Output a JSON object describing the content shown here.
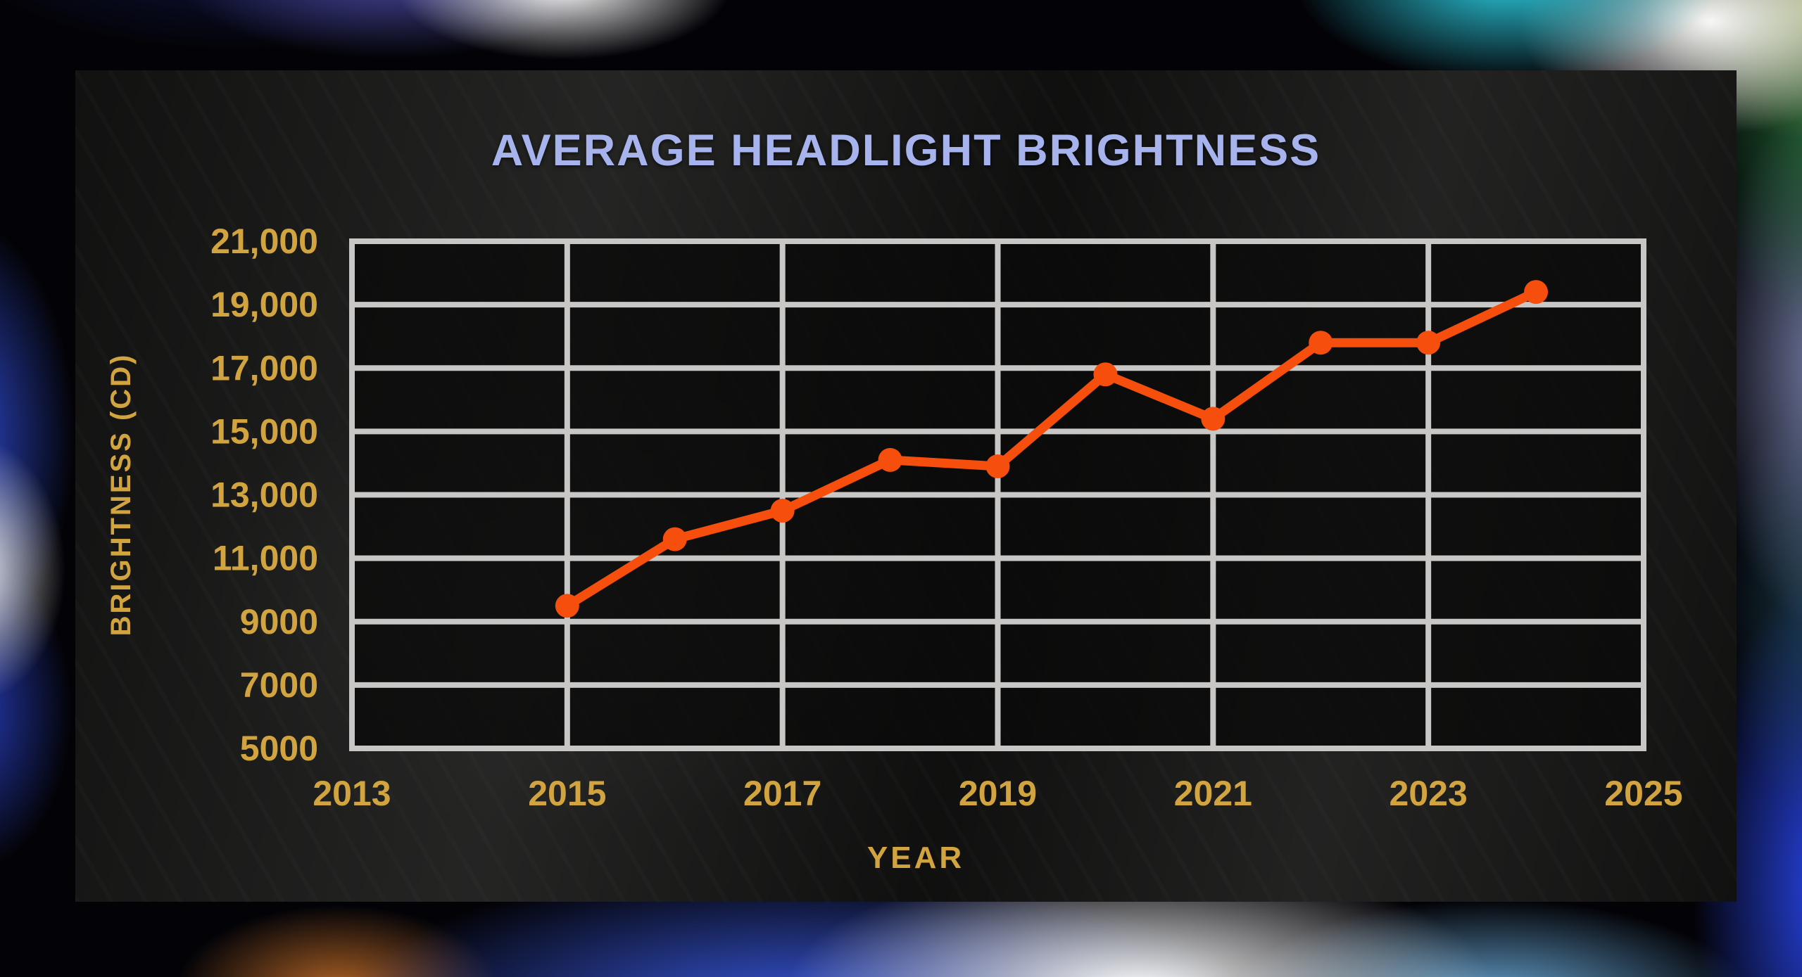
{
  "chart_data": {
    "type": "line",
    "title": "AVERAGE HEADLIGHT BRIGHTNESS",
    "xlabel": "YEAR",
    "ylabel": "BRIGHTNESS (CD)",
    "x": [
      2015,
      2016,
      2017,
      2018,
      2019,
      2020,
      2021,
      2022,
      2023,
      2024
    ],
    "values": [
      9500,
      11600,
      12500,
      14100,
      13900,
      16800,
      15400,
      17800,
      17800,
      19400
    ],
    "xlim": [
      2013,
      2025
    ],
    "ylim": [
      5000,
      21000
    ],
    "x_ticks": {
      "values": [
        2013,
        2015,
        2017,
        2019,
        2021,
        2023,
        2025
      ],
      "labels": [
        "2013",
        "2015",
        "2017",
        "2019",
        "2021",
        "2023",
        "2025"
      ]
    },
    "y_ticks": {
      "values": [
        21000,
        19000,
        17000,
        15000,
        13000,
        11000,
        9000,
        7000,
        5000
      ],
      "labels": [
        "21,000",
        "19,000",
        "17,000",
        "15,000",
        "13,000",
        "11,000",
        "9000",
        "7000",
        "5000"
      ]
    },
    "grid": true,
    "legend": "none",
    "colors": {
      "line": "#f64e0c",
      "markers": "#f64e0c",
      "grid": "#c8c7c5",
      "tick_labels": "#d1a440",
      "axis_titles": "#d1a440",
      "title": "#a7b3ec",
      "plot_background": "#0a0a0a",
      "panel_background": "#222221"
    }
  }
}
